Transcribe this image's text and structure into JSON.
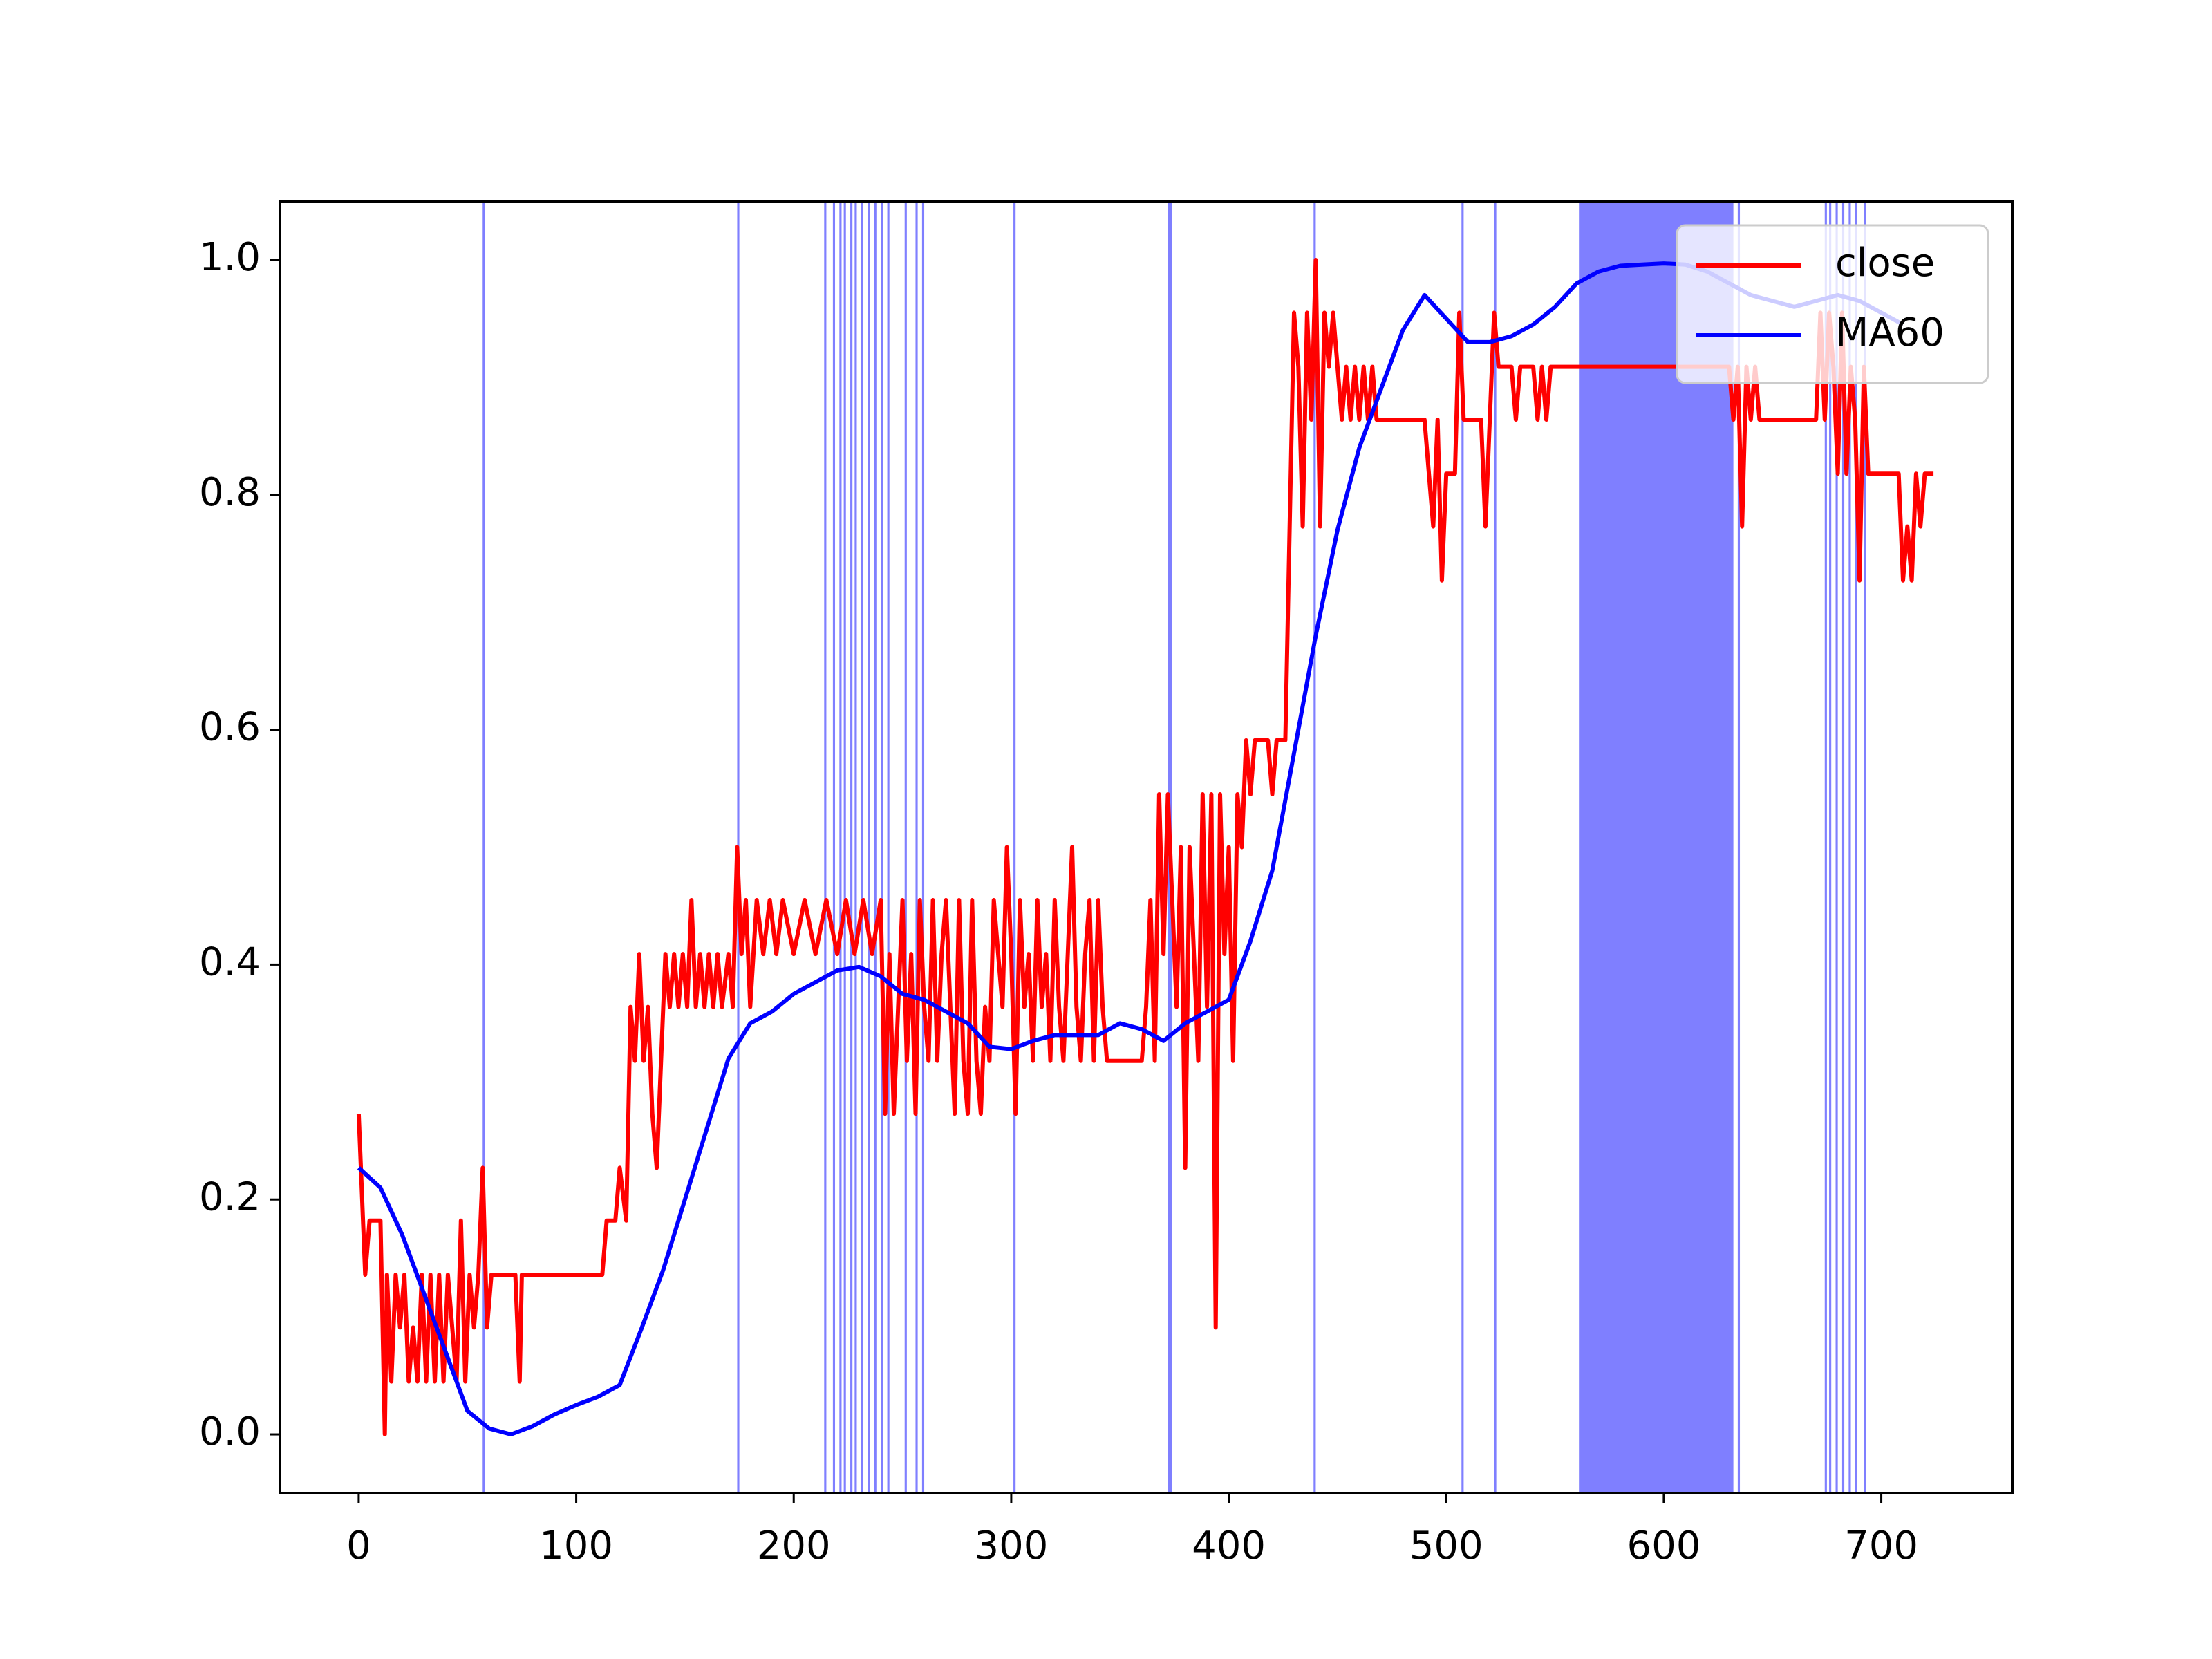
{
  "chart_data": {
    "type": "line",
    "xlim": [
      -36.2,
      760.2
    ],
    "xticks": [
      0,
      100,
      200,
      300,
      400,
      500,
      600,
      700
    ],
    "ylim": [
      -0.05,
      1.05
    ],
    "yticks": [
      {
        "value": 0,
        "label": "0.0"
      },
      {
        "value": 0.2,
        "label": "0.2"
      },
      {
        "value": 0.4,
        "label": "0.4"
      },
      {
        "value": 0.6,
        "label": "0.6"
      },
      {
        "value": 0.8,
        "label": "0.8"
      },
      {
        "value": 1,
        "label": "1.0"
      }
    ],
    "legend": "upper right",
    "span_color": "#0000ff",
    "spans": [
      [
        57,
        58
      ],
      [
        174,
        175
      ],
      [
        214,
        215
      ],
      [
        218,
        219
      ],
      [
        221,
        222
      ],
      [
        223,
        224
      ],
      [
        226,
        227
      ],
      [
        228,
        229
      ],
      [
        231,
        232
      ],
      [
        234,
        235
      ],
      [
        237,
        238
      ],
      [
        240,
        241
      ],
      [
        243,
        244
      ],
      [
        251,
        252
      ],
      [
        256,
        257
      ],
      [
        259,
        260
      ],
      [
        301,
        302
      ],
      [
        372,
        374
      ],
      [
        439,
        440
      ],
      [
        507,
        508
      ],
      [
        522,
        523
      ],
      [
        561,
        632
      ],
      [
        634,
        635
      ],
      [
        674,
        675
      ],
      [
        676,
        677
      ],
      [
        679,
        680
      ],
      [
        682,
        683
      ],
      [
        685,
        686
      ],
      [
        688,
        689
      ],
      [
        692,
        693
      ]
    ],
    "series": [
      {
        "name": "close",
        "color": "#ff0000",
        "x": [
          0,
          3,
          5,
          10,
          12,
          13,
          15,
          17,
          19,
          21,
          23,
          25,
          27,
          29,
          31,
          33,
          35,
          37,
          39,
          41,
          43,
          45,
          47,
          49,
          51,
          53,
          55,
          57,
          59,
          61,
          72,
          74,
          75,
          112,
          114,
          118,
          120,
          123,
          125,
          127,
          129,
          131,
          133,
          135,
          137,
          139,
          141,
          143,
          145,
          147,
          149,
          151,
          153,
          155,
          157,
          159,
          161,
          163,
          165,
          167,
          170,
          172,
          174,
          176,
          178,
          180,
          183,
          186,
          189,
          192,
          195,
          200,
          205,
          210,
          215,
          220,
          224,
          228,
          232,
          236,
          240,
          242,
          244,
          246,
          248,
          250,
          252,
          254,
          256,
          258,
          260,
          262,
          264,
          266,
          268,
          270,
          272,
          274,
          276,
          278,
          280,
          282,
          284,
          286,
          288,
          290,
          292,
          294,
          296,
          298,
          300,
          302,
          304,
          306,
          308,
          310,
          312,
          314,
          316,
          318,
          320,
          322,
          324,
          326,
          328,
          330,
          332,
          334,
          336,
          338,
          340,
          342,
          344,
          346,
          360,
          362,
          364,
          366,
          368,
          370,
          372,
          374,
          376,
          378,
          380,
          382,
          384,
          386,
          388,
          390,
          392,
          394,
          396,
          398,
          400,
          402,
          404,
          406,
          408,
          410,
          412,
          418,
          420,
          422,
          426,
          428,
          430,
          432,
          434,
          436,
          438,
          440,
          442,
          444,
          446,
          448,
          450,
          452,
          454,
          456,
          458,
          460,
          462,
          464,
          466,
          468,
          470,
          490,
          492,
          494,
          496,
          498,
          500,
          504,
          506,
          508,
          516,
          518,
          520,
          522,
          524,
          530,
          532,
          534,
          540,
          542,
          544,
          546,
          548,
          560,
          630,
          632,
          634,
          636,
          638,
          640,
          642,
          644,
          670,
          672,
          674,
          676,
          678,
          680,
          682,
          684,
          686,
          688,
          690,
          692,
          694,
          700,
          708,
          710,
          712,
          714,
          716,
          718,
          720,
          724
        ],
        "values": [
          0.273,
          0.136,
          0.182,
          0.182,
          0.0,
          0.136,
          0.045,
          0.136,
          0.091,
          0.136,
          0.045,
          0.091,
          0.045,
          0.136,
          0.045,
          0.136,
          0.045,
          0.136,
          0.045,
          0.136,
          0.091,
          0.045,
          0.182,
          0.045,
          0.136,
          0.091,
          0.136,
          0.227,
          0.091,
          0.136,
          0.136,
          0.045,
          0.136,
          0.136,
          0.182,
          0.182,
          0.227,
          0.182,
          0.364,
          0.318,
          0.409,
          0.318,
          0.364,
          0.273,
          0.227,
          0.318,
          0.409,
          0.364,
          0.409,
          0.364,
          0.409,
          0.364,
          0.455,
          0.364,
          0.409,
          0.364,
          0.409,
          0.364,
          0.409,
          0.364,
          0.409,
          0.364,
          0.5,
          0.409,
          0.455,
          0.364,
          0.455,
          0.409,
          0.455,
          0.409,
          0.455,
          0.409,
          0.455,
          0.409,
          0.455,
          0.409,
          0.455,
          0.409,
          0.455,
          0.409,
          0.455,
          0.273,
          0.409,
          0.273,
          0.364,
          0.455,
          0.318,
          0.409,
          0.273,
          0.455,
          0.364,
          0.318,
          0.455,
          0.318,
          0.409,
          0.455,
          0.364,
          0.273,
          0.455,
          0.318,
          0.273,
          0.455,
          0.318,
          0.273,
          0.364,
          0.318,
          0.455,
          0.409,
          0.364,
          0.5,
          0.409,
          0.273,
          0.455,
          0.364,
          0.409,
          0.318,
          0.455,
          0.364,
          0.409,
          0.318,
          0.455,
          0.364,
          0.318,
          0.409,
          0.5,
          0.364,
          0.318,
          0.409,
          0.455,
          0.318,
          0.455,
          0.364,
          0.318,
          0.318,
          0.318,
          0.364,
          0.455,
          0.318,
          0.545,
          0.409,
          0.545,
          0.455,
          0.364,
          0.5,
          0.227,
          0.5,
          0.409,
          0.318,
          0.545,
          0.364,
          0.545,
          0.091,
          0.545,
          0.409,
          0.5,
          0.318,
          0.545,
          0.5,
          0.591,
          0.545,
          0.591,
          0.591,
          0.545,
          0.591,
          0.591,
          0.773,
          0.955,
          0.909,
          0.773,
          0.955,
          0.864,
          1.0,
          0.773,
          0.955,
          0.909,
          0.955,
          0.909,
          0.864,
          0.909,
          0.864,
          0.909,
          0.864,
          0.909,
          0.864,
          0.909,
          0.864,
          0.864,
          0.864,
          0.818,
          0.773,
          0.864,
          0.727,
          0.818,
          0.818,
          0.955,
          0.864,
          0.864,
          0.773,
          0.864,
          0.955,
          0.909,
          0.909,
          0.864,
          0.909,
          0.909,
          0.864,
          0.909,
          0.864,
          0.909,
          0.909,
          0.909,
          0.864,
          0.909,
          0.773,
          0.909,
          0.864,
          0.909,
          0.864,
          0.864,
          0.955,
          0.864,
          0.955,
          0.909,
          0.818,
          0.955,
          0.818,
          0.909,
          0.864,
          0.727,
          0.909,
          0.818,
          0.818,
          0.818,
          0.727,
          0.773,
          0.727,
          0.818,
          0.773,
          0.818,
          0.818
        ]
      },
      {
        "name": "MA60",
        "color": "#0000ff",
        "x": [
          0,
          10,
          20,
          30,
          40,
          50,
          60,
          70,
          80,
          90,
          100,
          110,
          120,
          130,
          140,
          150,
          160,
          170,
          180,
          190,
          200,
          210,
          220,
          230,
          240,
          250,
          260,
          270,
          280,
          290,
          300,
          310,
          320,
          330,
          340,
          350,
          360,
          370,
          380,
          390,
          400,
          410,
          420,
          430,
          440,
          450,
          460,
          470,
          480,
          490,
          500,
          510,
          520,
          530,
          540,
          550,
          560,
          570,
          580,
          590,
          600,
          610,
          620,
          630,
          640,
          650,
          660,
          670,
          680,
          690,
          700,
          710
        ],
        "values": [
          0.227,
          0.21,
          0.17,
          0.12,
          0.07,
          0.02,
          0.005,
          0.0,
          0.007,
          0.017,
          0.025,
          0.032,
          0.042,
          0.09,
          0.14,
          0.2,
          0.26,
          0.32,
          0.35,
          0.36,
          0.375,
          0.385,
          0.395,
          0.398,
          0.39,
          0.375,
          0.37,
          0.36,
          0.35,
          0.33,
          0.328,
          0.335,
          0.34,
          0.34,
          0.34,
          0.35,
          0.345,
          0.335,
          0.35,
          0.36,
          0.37,
          0.42,
          0.48,
          0.58,
          0.68,
          0.77,
          0.84,
          0.89,
          0.94,
          0.97,
          0.95,
          0.93,
          0.93,
          0.935,
          0.945,
          0.96,
          0.98,
          0.99,
          0.995,
          0.996,
          0.997,
          0.996,
          0.99,
          0.98,
          0.97,
          0.965,
          0.96,
          0.965,
          0.97,
          0.965,
          0.955,
          0.945
        ]
      }
    ]
  }
}
